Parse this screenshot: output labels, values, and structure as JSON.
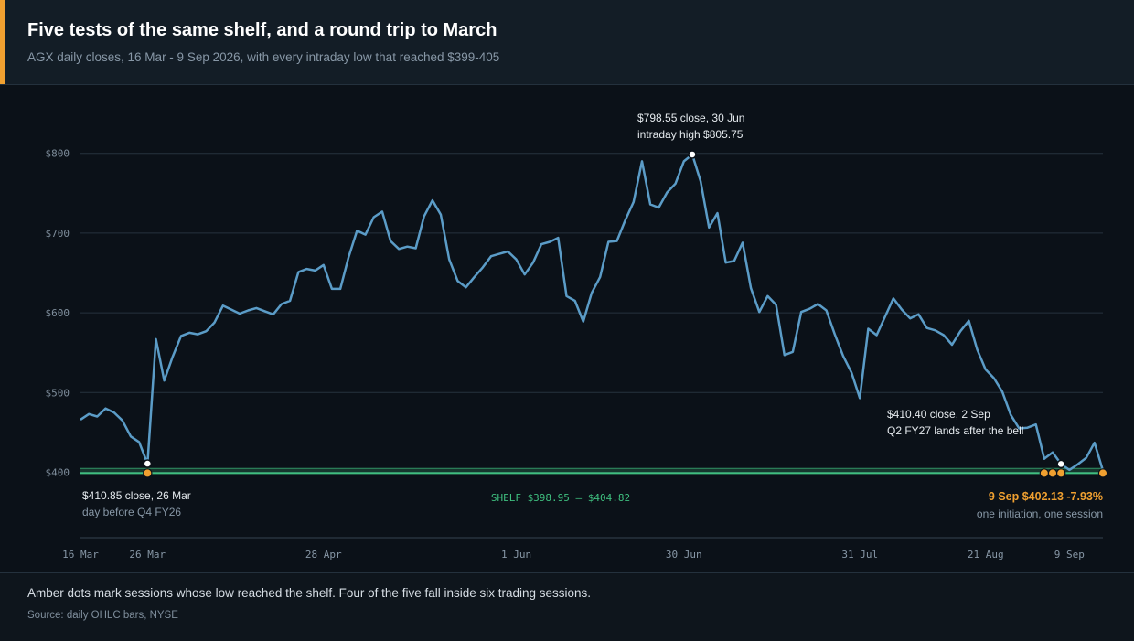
{
  "header": {
    "title": "Five tests of the same shelf, and a round trip to March",
    "subtitle": "AGX daily closes, 16 Mar - 9 Sep 2026, with every intraday low that reached $399-405"
  },
  "footer": {
    "note": "Amber dots mark sessions whose low reached the shelf. Four of the five fall inside six trading sessions.",
    "source": "Source: daily OHLC bars, NYSE"
  },
  "colors": {
    "line": "#5b9cc7",
    "shelf": "#3fbf7f",
    "amber": "#f0a030",
    "grid": "#26323d",
    "background": "#0b1118"
  },
  "chart_data": {
    "type": "line",
    "y_ticks": [
      400,
      500,
      600,
      700,
      800
    ],
    "y_tick_labels": [
      "$400",
      "$500",
      "$600",
      "$700",
      "$800"
    ],
    "ylim": [
      400,
      800
    ],
    "x_ticks": [
      {
        "x": 0,
        "label": "16 Mar"
      },
      {
        "x": 8,
        "label": "26 Mar"
      },
      {
        "x": 29,
        "label": "28 Apr"
      },
      {
        "x": 52,
        "label": "1 Jun"
      },
      {
        "x": 72,
        "label": "30 Jun"
      },
      {
        "x": 93,
        "label": "31 Jul"
      },
      {
        "x": 108,
        "label": "21 Aug"
      },
      {
        "x": 118,
        "label": "9 Sep"
      }
    ],
    "series": [
      {
        "values": [
          466,
          473,
          470,
          480,
          475,
          465,
          445,
          438,
          410.85,
          567,
          515,
          545,
          571,
          575,
          573,
          577,
          588,
          609,
          604,
          599,
          603,
          606,
          602,
          598,
          611,
          615,
          651,
          655,
          653,
          660,
          630,
          630,
          670,
          703,
          698,
          720,
          727,
          690,
          680,
          683,
          681,
          721,
          741,
          723,
          667,
          640,
          632,
          645,
          657,
          671,
          674,
          677,
          667,
          648,
          663,
          686,
          689,
          694,
          621,
          615,
          589,
          625,
          645,
          689,
          690,
          716,
          739,
          790,
          736,
          732,
          751,
          762,
          790,
          798.55,
          765,
          707,
          725,
          663,
          665,
          688,
          631,
          601,
          621,
          610,
          547,
          551,
          601,
          605,
          611,
          603,
          573,
          546,
          525,
          493,
          580,
          572,
          595,
          618,
          604,
          593,
          598,
          581,
          578,
          572,
          560,
          577,
          590,
          554,
          529,
          518,
          501,
          472,
          455,
          456,
          460,
          417,
          425,
          410.4,
          403,
          410,
          418,
          437,
          402.13
        ]
      }
    ],
    "shelf": {
      "low": 398.95,
      "high": 404.82,
      "label": "SHELF  $398.95 – $404.82"
    },
    "amber_dots_x": [
      8,
      115,
      116,
      117,
      122
    ],
    "annotations": {
      "peak": {
        "x": 73,
        "y": 798.55,
        "line1": "$798.55 close, 30 Jun",
        "line2": "intraday high $805.75"
      },
      "march_low": {
        "x": 8,
        "y": 410.85,
        "line1": "$410.85 close, 26 Mar",
        "line2": "day before Q4 FY26"
      },
      "sep2": {
        "x": 117,
        "y": 410.4,
        "line1": "$410.40 close, 2 Sep",
        "line2": "Q2 FY27 lands after the bell"
      },
      "last": {
        "line1": "9 Sep  $402.13  -7.93%",
        "line2": "one initiation, one session"
      }
    }
  }
}
